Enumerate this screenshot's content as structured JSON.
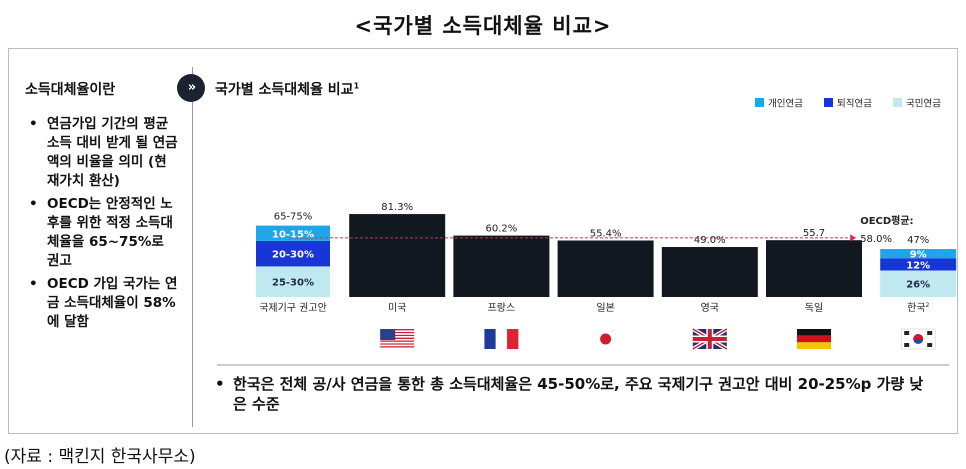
{
  "page": {
    "title": "<국가별 소득대체율 비교>",
    "source": "(자료 : 맥킨지 한국사무소)"
  },
  "left_panel": {
    "heading": "소득대체율이란",
    "bullets": [
      "연금가입 기간의 평균 소득 대비 받게 될 연금액의 비율을 의미 (현재가치 환산)",
      "OECD는 안정적인 노후를 위한 적정 소득대체율을 65~75%로 권고",
      "OECD 가입 국가는 연금 소득대체율이 58%에 달함"
    ]
  },
  "chart_panel": {
    "badge": "»",
    "heading": "국가별 소득대체율 비교",
    "heading_sup": "1",
    "bottom_note": "한국은 전체 공/사 연금을 통한 총 소득대체율은 45-50%로, 주요 국제기구 권고안 대비 20-25%p 가량 낮은 수준"
  },
  "colors": {
    "private": "#1ea7e8",
    "retirement": "#1736d6",
    "national": "#bfe8f0",
    "country_bar": "#111820",
    "oecd_line": "#e0245e"
  },
  "chart_data": {
    "type": "bar",
    "title": "국가별 소득대체율 비교",
    "legend_position": "top-right",
    "legend": [
      {
        "name": "개인연금",
        "color": "#1ea7e8"
      },
      {
        "name": "퇴직연금",
        "color": "#1736d6"
      },
      {
        "name": "국민연금",
        "color": "#bfe8f0"
      }
    ],
    "ylim": [
      0,
      100
    ],
    "categories": [
      "국제기구 권고안",
      "미국",
      "프랑스",
      "일본",
      "영국",
      "독일",
      "한국"
    ],
    "category_sups": [
      "",
      "",
      "",
      "",
      "",
      "",
      "2"
    ],
    "bars": [
      {
        "kind": "stacked",
        "total_label": "65-75%",
        "segments": [
          {
            "series": "국민연금",
            "value": 30,
            "label": "25-30%"
          },
          {
            "series": "퇴직연금",
            "value": 25,
            "label": "20-30%"
          },
          {
            "series": "개인연금",
            "value": 15,
            "label": "10-15%"
          }
        ]
      },
      {
        "kind": "single",
        "value": 81.3,
        "label": "81.3%"
      },
      {
        "kind": "single",
        "value": 60.2,
        "label": "60.2%"
      },
      {
        "kind": "single",
        "value": 55.4,
        "label": "55.4%"
      },
      {
        "kind": "single",
        "value": 49.0,
        "label": "49.0%"
      },
      {
        "kind": "single",
        "value": 55.7,
        "label": "55.7"
      },
      {
        "kind": "stacked",
        "total_label": "47%",
        "segments": [
          {
            "series": "국민연금",
            "value": 26,
            "label": "26%"
          },
          {
            "series": "퇴직연금",
            "value": 12,
            "label": "12%"
          },
          {
            "series": "개인연금",
            "value": 9,
            "label": "9%"
          }
        ]
      }
    ],
    "reference_line": {
      "name": "OECD평균",
      "value": 58.0,
      "label_title": "OECD평균:",
      "label_value": "58.0%"
    },
    "flags": [
      "us-flag",
      "france-flag",
      "japan-flag",
      "uk-flag",
      "germany-flag",
      "korea-flag"
    ]
  }
}
